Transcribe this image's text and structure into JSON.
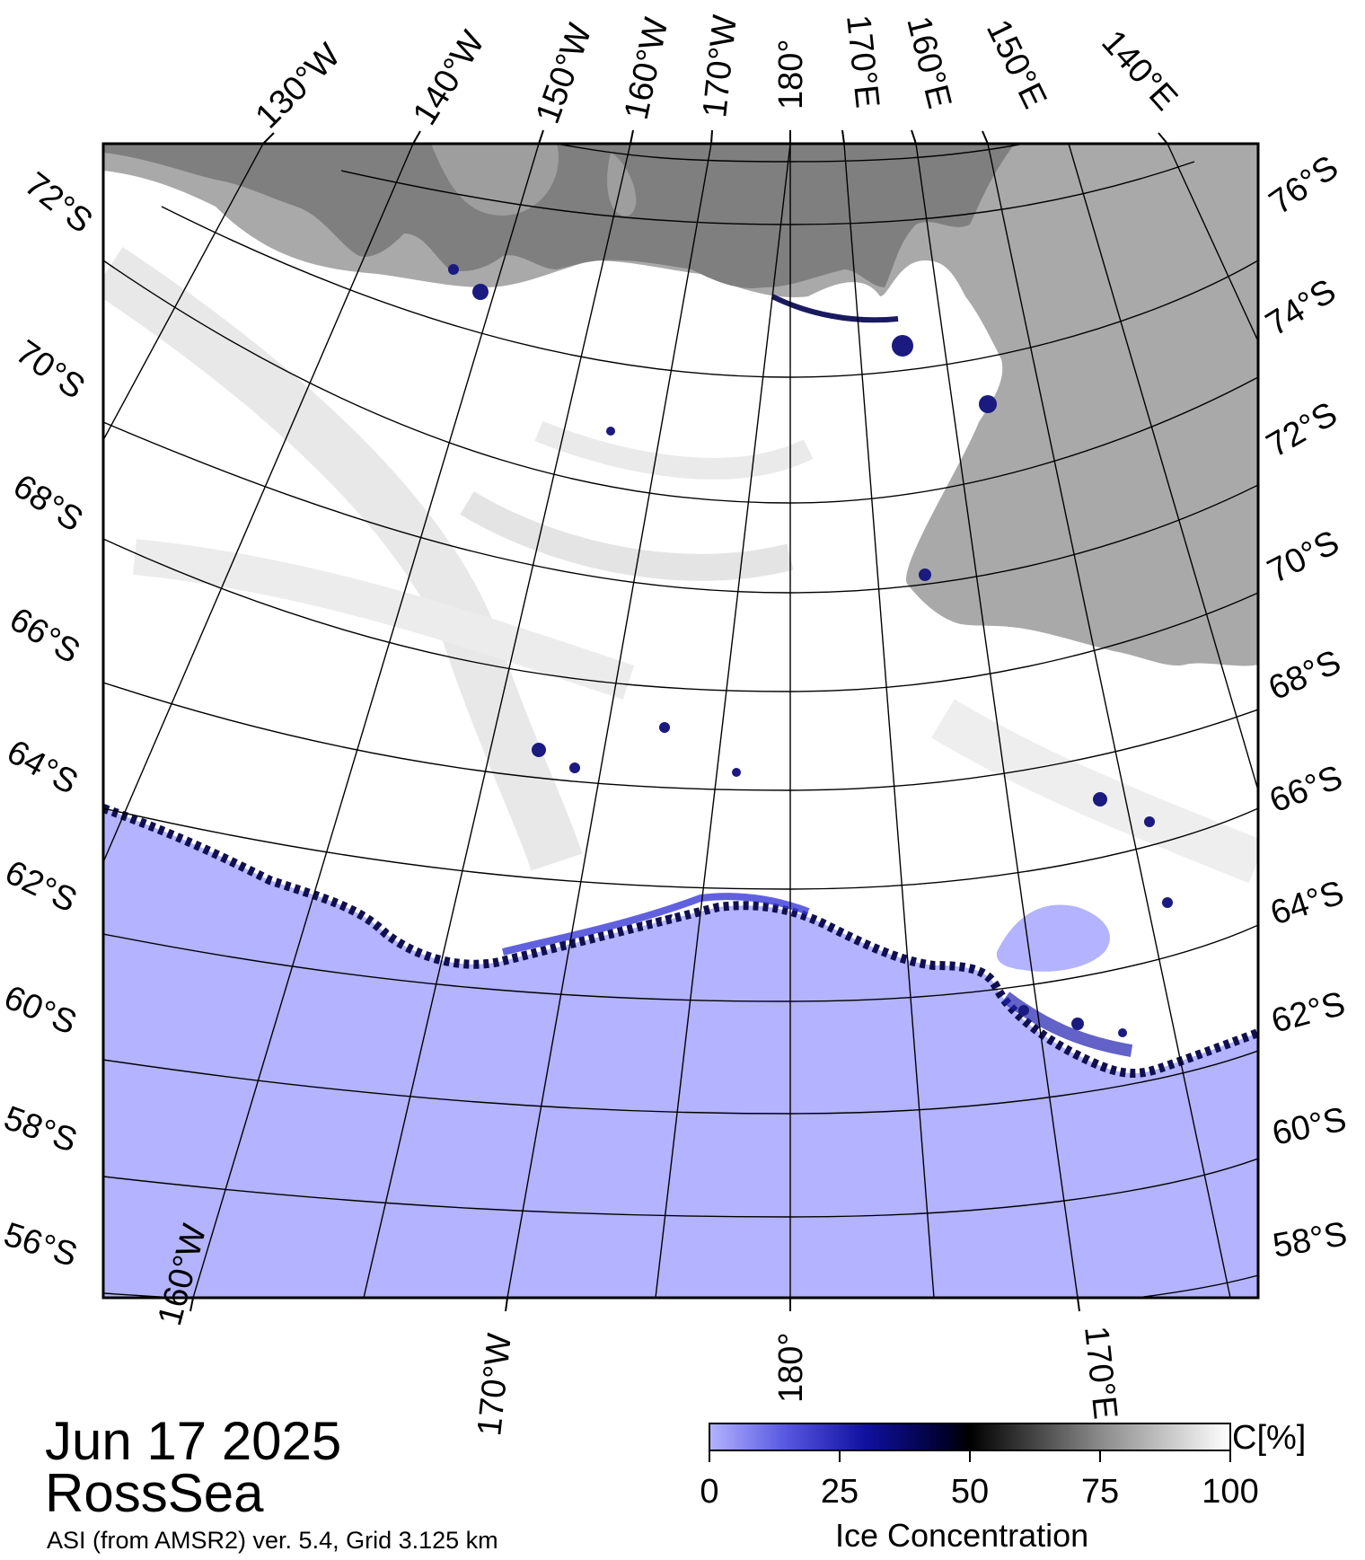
{
  "colors": {
    "land": "#a9a9a9",
    "ice_shelf": "#7f7f7f",
    "open_water": "#b3b3ff",
    "ice_full": "#ffffff",
    "ice_low": "#0000a0",
    "frame": "#000000"
  },
  "map": {
    "region": "RossSea",
    "projection": "polar stereographic",
    "top_lon_labels": [
      "130°W",
      "140°W",
      "150°W",
      "160°W",
      "170°W",
      "180°",
      "170°E",
      "160°E",
      "150°E",
      "140°E"
    ],
    "bottom_lon_labels": [
      "160°W",
      "170°W",
      "180°",
      "170°E"
    ],
    "left_lat_labels": [
      "72°S",
      "70°S",
      "68°S",
      "66°S",
      "64°S",
      "62°S",
      "60°S",
      "58°S",
      "56°S"
    ],
    "right_lat_labels": [
      "76°S",
      "74°S",
      "72°S",
      "70°S",
      "68°S",
      "66°S",
      "64°S",
      "62°S",
      "60°S",
      "58°S"
    ]
  },
  "caption": {
    "date": "Jun 17 2025",
    "region": "RossSea",
    "source": "ASI (from AMSR2) ver. 5.4,  Grid 3.125 km"
  },
  "colorbar": {
    "ticks": [
      "0",
      "25",
      "50",
      "75",
      "100"
    ],
    "unit": "C[%]",
    "title": "Ice Concentration",
    "range": [
      0,
      100
    ]
  }
}
